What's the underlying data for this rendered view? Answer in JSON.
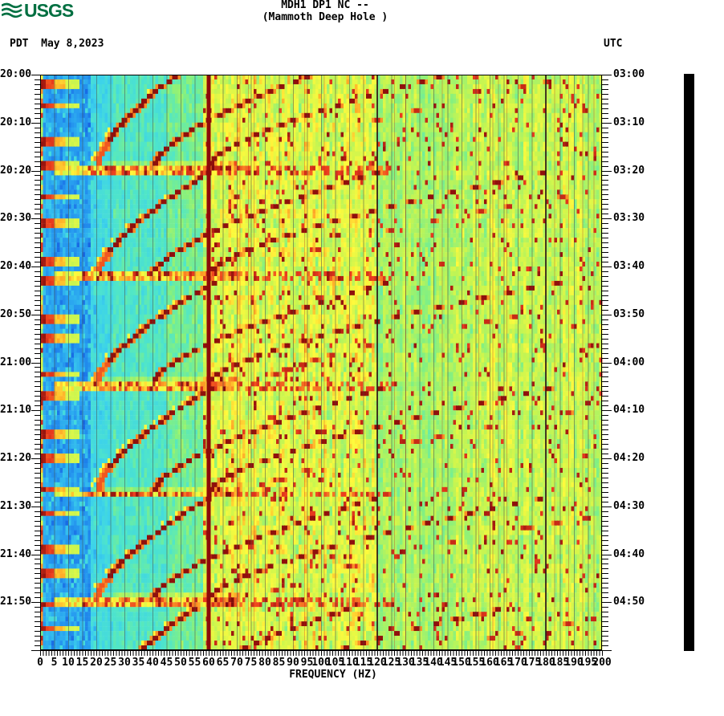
{
  "header": {
    "logo_text": "USGS",
    "logo_color": "#006F41",
    "left_label": "PDT  May 8,2023",
    "title_line1": "MDH1 DP1 NC --",
    "title_line2": "(Mammoth Deep Hole )",
    "right_label": "UTC"
  },
  "y_axis_left": {
    "timezone": "PDT",
    "labels": [
      "20:00",
      "20:10",
      "20:20",
      "20:30",
      "20:40",
      "20:50",
      "21:00",
      "21:10",
      "21:20",
      "21:30",
      "21:40",
      "21:50"
    ]
  },
  "y_axis_right": {
    "timezone": "UTC",
    "labels": [
      "03:00",
      "03:10",
      "03:20",
      "03:30",
      "03:40",
      "03:50",
      "04:00",
      "04:10",
      "04:20",
      "04:30",
      "04:40",
      "04:50"
    ]
  },
  "x_axis": {
    "title": "FREQUENCY (HZ)",
    "tick_labels": [
      "0",
      "5",
      "10",
      "15",
      "20",
      "25",
      "30",
      "35",
      "40",
      "45",
      "50",
      "55",
      "60",
      "65",
      "70",
      "75",
      "80",
      "85",
      "90",
      "95",
      "100",
      "105",
      "110",
      "115",
      "120",
      "125",
      "130",
      "135",
      "140",
      "145",
      "150",
      "155",
      "160",
      "165",
      "170",
      "175",
      "180",
      "185",
      "190",
      "195",
      "200"
    ]
  },
  "colorbar": {
    "color": "#000000"
  },
  "chart_data": {
    "type": "heatmap",
    "subtype": "seismic-spectrogram",
    "station": "MDH1 DP1 NC --",
    "station_name": "Mammoth Deep Hole",
    "date_local": "May 8,2023",
    "time_axis": {
      "left_tz": "PDT",
      "right_tz": "UTC",
      "start_local": "20:00",
      "start_utc": "03:00",
      "duration_minutes": 120,
      "label_step_minutes": 10,
      "tick_step_minutes": 1
    },
    "freq_axis": {
      "min_hz": 0,
      "max_hz": 200,
      "label_step_hz": 5,
      "tick_step_hz": 1,
      "grid_step_hz": 5
    },
    "vertical_lines": {
      "mains_hz": 60,
      "dark_lines_hz": [
        120,
        180
      ]
    },
    "glide_cycles": {
      "comment": "repeating harmonic tremor glides descending toward each burst",
      "event_minutes": [
        19.2,
        41.8,
        64.4,
        87.0,
        109.6
      ],
      "event_times_local": [
        "20:19",
        "20:42",
        "21:04",
        "21:27",
        "21:50"
      ],
      "period_minutes": 22.6,
      "fundamental_start_hz": 58,
      "fundamental_end_hz": 20,
      "harmonics": [
        1,
        2,
        3,
        4
      ]
    },
    "low_freq_bursts": {
      "first_minute": 1.7,
      "alternating_intervals_minutes": [
        4.7,
        7.4
      ],
      "band_hz": [
        0,
        14
      ]
    },
    "background_bands": [
      {
        "f": [
          0,
          1
        ],
        "v": [
          0.5,
          0.95
        ]
      },
      {
        "f": [
          1,
          3
        ],
        "v": [
          0.15,
          0.33
        ]
      },
      {
        "f": [
          3,
          18
        ],
        "v": [
          0.14,
          0.32
        ]
      },
      {
        "f": [
          18,
          26
        ],
        "v": [
          0.28,
          0.44
        ]
      },
      {
        "f": [
          26,
          45
        ],
        "v": [
          0.34,
          0.5
        ]
      },
      {
        "f": [
          45,
          58
        ],
        "v": [
          0.4,
          0.58
        ]
      },
      {
        "f": [
          58,
          66
        ],
        "v": [
          0.5,
          0.78
        ]
      },
      {
        "f": [
          66,
          120
        ],
        "v": [
          0.5,
          0.82
        ]
      },
      {
        "f": [
          120,
          148
        ],
        "v": [
          0.46,
          0.7
        ]
      },
      {
        "f": [
          148,
          200
        ],
        "v": [
          0.47,
          0.76
        ]
      }
    ],
    "palette_stops": [
      [
        0.0,
        "#1046C8"
      ],
      [
        0.12,
        "#196EE6"
      ],
      [
        0.22,
        "#28A0F0"
      ],
      [
        0.32,
        "#3CD2EB"
      ],
      [
        0.42,
        "#50E6C8"
      ],
      [
        0.52,
        "#82F082"
      ],
      [
        0.62,
        "#C8F550"
      ],
      [
        0.72,
        "#FFFA3C"
      ],
      [
        0.8,
        "#FFAA28"
      ],
      [
        0.88,
        "#EB3C1E"
      ],
      [
        1.0,
        "#820A0A"
      ]
    ]
  }
}
